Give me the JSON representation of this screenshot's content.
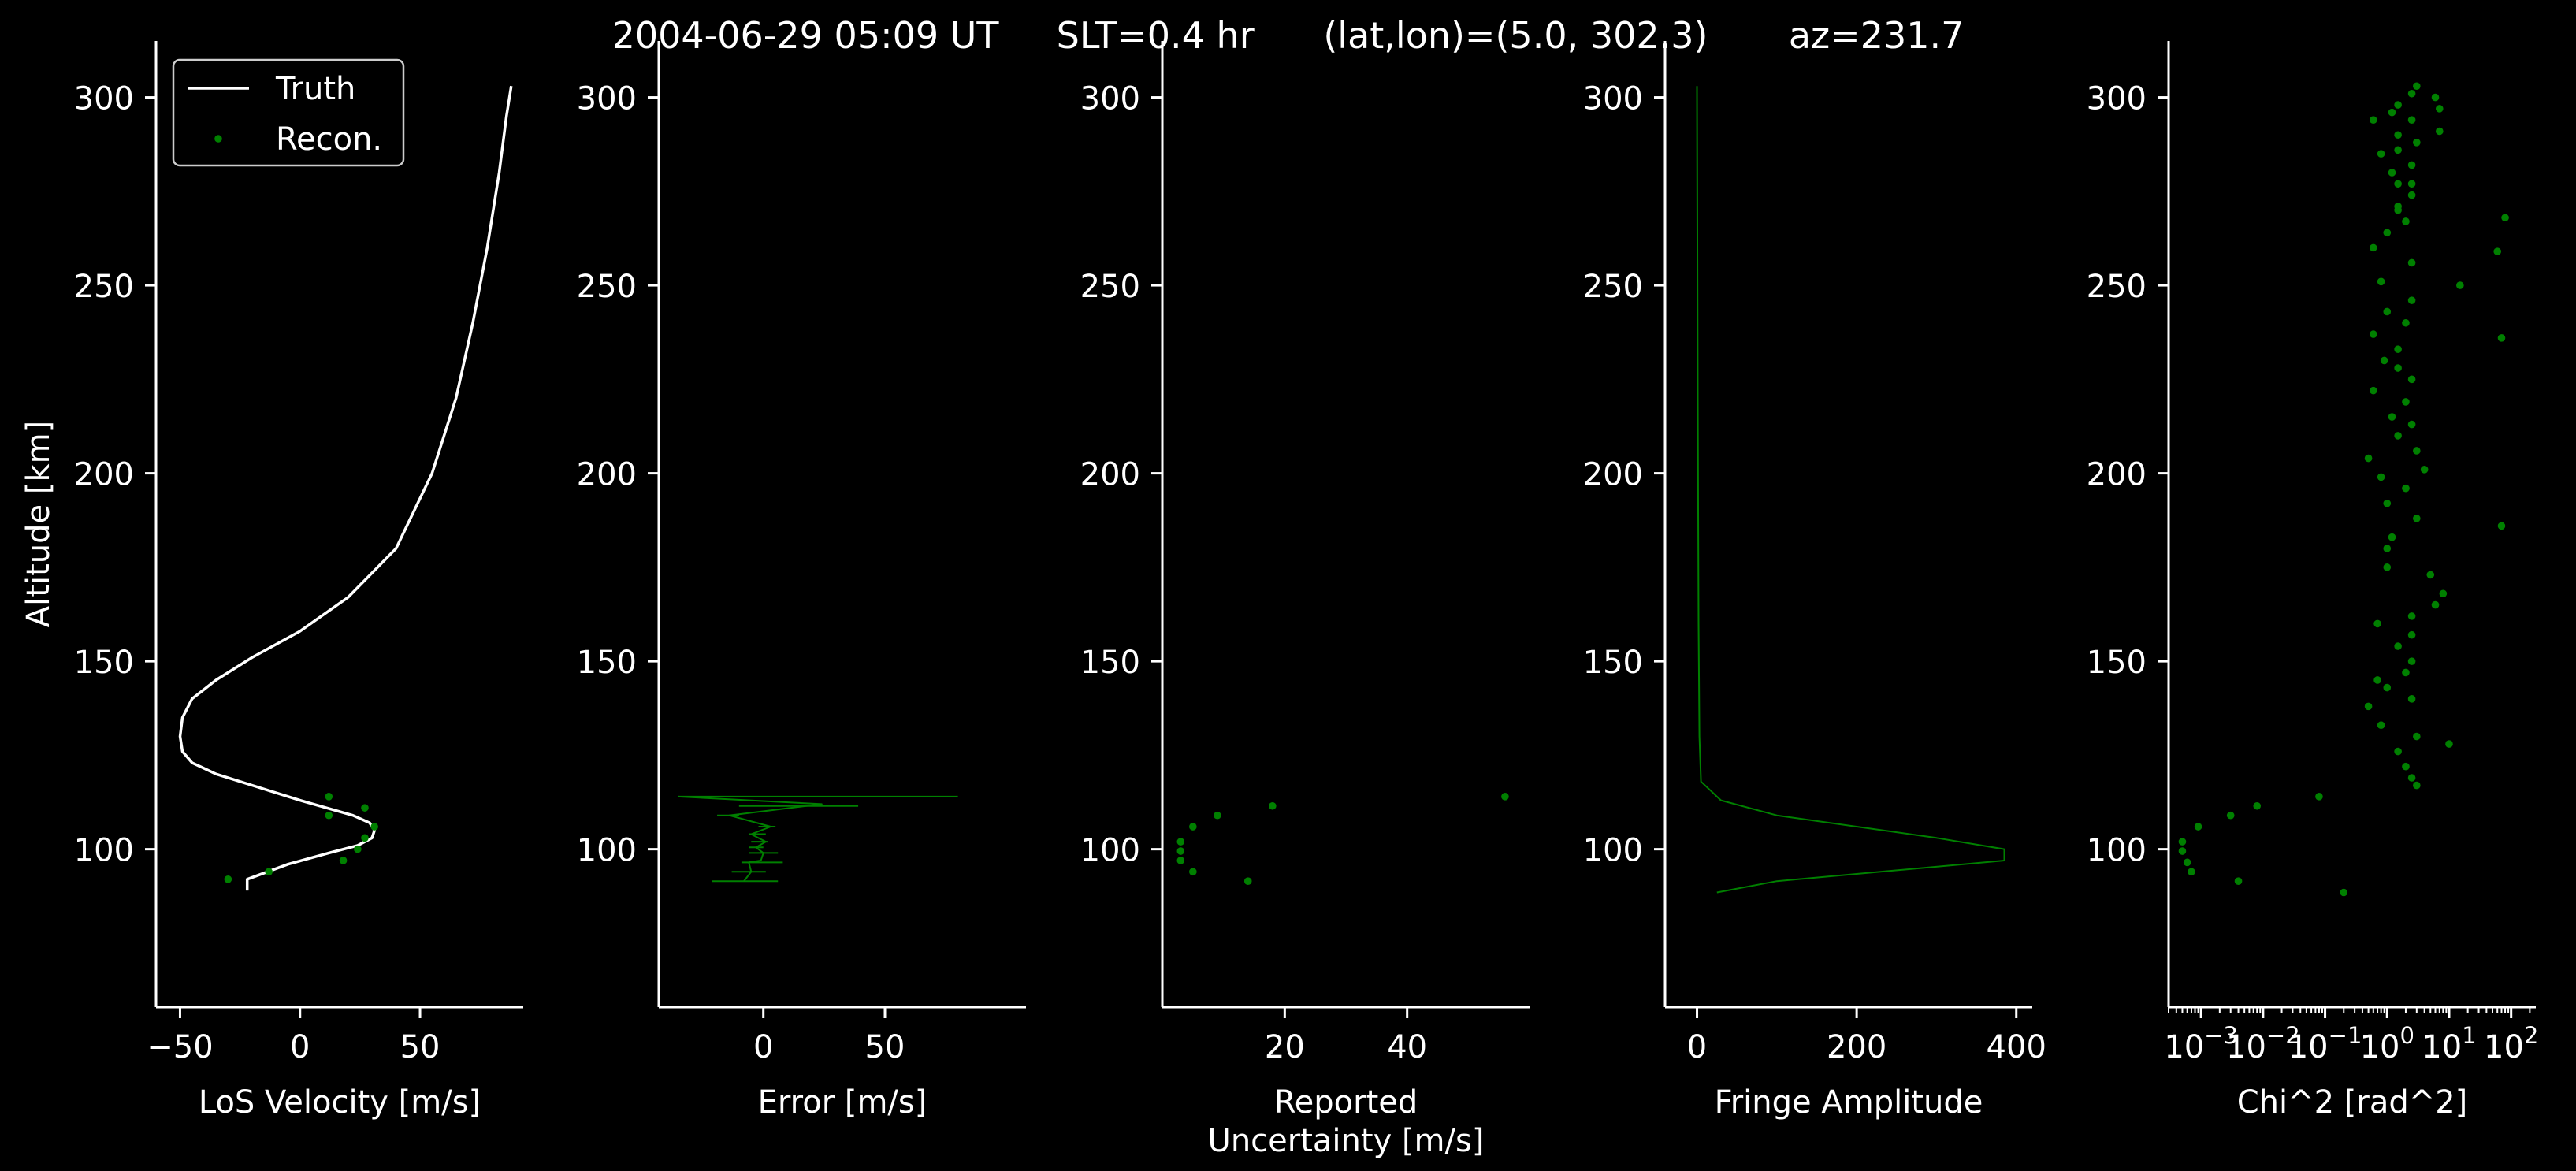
{
  "title": "2004-06-29 05:09 UT     SLT=0.4 hr      (lat,lon)=(5.0, 302.3)       az=231.7",
  "colors": {
    "background": "#000000",
    "axes": "#ffffff",
    "truth": "#ffffff",
    "recon": "#008000"
  },
  "chart_data": [
    {
      "type": "line",
      "xlabel": "LoS Velocity [m/s]",
      "ylabel": "Altitude [km]",
      "xlim": [
        -60,
        93
      ],
      "ylim": [
        58,
        315
      ],
      "xticks": [
        -50,
        0,
        50
      ],
      "xtick_labels": [
        "−50",
        "0",
        "50"
      ],
      "yticks": [
        100,
        150,
        200,
        250,
        300
      ],
      "legend": {
        "location": "upper left",
        "entries": [
          "Truth",
          "Recon."
        ]
      },
      "series": [
        {
          "name": "Truth",
          "style": "line",
          "color": "#ffffff",
          "x": [
            -22,
            -22,
            -5,
            12,
            24,
            30,
            31,
            29,
            22,
            0,
            -20,
            -35,
            -45,
            -49,
            -50,
            -49,
            -45,
            -35,
            -20,
            0,
            20,
            40,
            55,
            65,
            72,
            78,
            83,
            86,
            88
          ],
          "y": [
            89,
            92,
            96,
            99,
            101,
            103,
            105,
            107,
            109,
            113,
            117,
            120,
            123,
            126,
            130,
            135,
            140,
            145,
            151,
            158,
            167,
            180,
            200,
            220,
            240,
            260,
            280,
            295,
            303
          ]
        },
        {
          "name": "Recon.",
          "style": "scatter",
          "color": "#008000",
          "x": [
            -30,
            -13,
            18,
            24,
            27,
            31,
            12,
            12,
            27
          ],
          "y": [
            92,
            94,
            97,
            100,
            103,
            106,
            109,
            114,
            111
          ]
        }
      ]
    },
    {
      "type": "line",
      "xlabel": "Error [m/s]",
      "xlim": [
        -43,
        108
      ],
      "ylim": [
        58,
        315
      ],
      "xticks": [
        0,
        50
      ],
      "yticks": [
        100,
        150,
        200,
        250,
        300
      ],
      "series": [
        {
          "name": "",
          "style": "line",
          "color": "#008000",
          "x": [
            -8,
            -5,
            -6,
            -1,
            0,
            -3,
            1,
            -5,
            3,
            -14,
            24,
            -35
          ],
          "y": [
            91.5,
            94,
            96.5,
            97,
            99,
            100.5,
            102,
            104,
            106,
            109,
            112,
            114
          ]
        },
        {
          "name": "",
          "style": "errorbar",
          "color": "#008000",
          "y": [
            91.5,
            94,
            96.5,
            99,
            100.5,
            102,
            104,
            106,
            109,
            111.5,
            114
          ],
          "xmin": [
            -21,
            -13,
            -9,
            -6,
            -6,
            -5,
            -6,
            -2,
            -19,
            -10,
            -35
          ],
          "xmax": [
            6,
            1,
            8,
            6,
            0,
            2,
            1,
            5,
            -10,
            39,
            80
          ]
        }
      ]
    },
    {
      "type": "scatter",
      "xlabel": "Reported\nUncertainty [m/s]",
      "xlim": [
        0,
        60
      ],
      "ylim": [
        58,
        315
      ],
      "xticks": [
        20,
        40
      ],
      "yticks": [
        100,
        150,
        200,
        250,
        300
      ],
      "series": [
        {
          "name": "",
          "color": "#008000",
          "x": [
            14,
            5,
            3,
            3,
            3,
            5,
            9,
            18,
            56
          ],
          "y": [
            91.5,
            94,
            97,
            99.5,
            102,
            106,
            109,
            111.5,
            114
          ]
        }
      ]
    },
    {
      "type": "line",
      "xlabel": "Fringe Amplitude",
      "xlim": [
        -40,
        420
      ],
      "ylim": [
        58,
        315
      ],
      "xticks": [
        0,
        200,
        400
      ],
      "yticks": [
        100,
        150,
        200,
        250,
        300
      ],
      "series": [
        {
          "name": "",
          "color": "#008000",
          "x": [
            25,
            100,
            385,
            385,
            300,
            100,
            30,
            5,
            3,
            2,
            1,
            0
          ],
          "y": [
            88.5,
            91.5,
            97,
            100,
            103,
            109,
            113,
            118,
            130,
            160,
            220,
            303
          ]
        }
      ]
    },
    {
      "type": "scatter",
      "xlabel": "Chi^2 [rad^2]",
      "xscale": "log",
      "xlim": [
        0.0003,
        250
      ],
      "ylim": [
        58,
        315
      ],
      "xticks": [
        0.01,
        100
      ],
      "xtick_labels": [
        "10^-2",
        "10^2"
      ],
      "yticks": [
        100,
        150,
        200,
        250,
        300
      ],
      "series": [
        {
          "name": "",
          "color": "#008000",
          "x": [
            0.2,
            0.004,
            0.0007,
            0.0006,
            0.0005,
            0.0005,
            0.0009,
            0.003,
            0.008,
            0.08,
            3,
            10,
            2.5,
            3,
            2,
            1.5,
            0.8,
            0.5,
            2.5,
            2,
            1,
            0.7,
            2.5,
            1.5,
            6,
            8,
            2.5,
            0.7,
            1,
            1,
            5,
            2.5,
            1.2,
            3,
            4,
            2,
            1,
            0.5,
            3,
            1.5,
            0.8,
            2.5,
            1.2,
            2,
            0.6,
            70,
            2.5,
            1.5,
            0.9,
            1.5,
            0.6,
            2,
            1,
            2.5,
            0.8,
            2.5,
            0.6,
            1,
            2,
            1.5,
            2.5,
            1.5,
            1.2,
            2.5,
            0.8,
            3,
            1.5,
            2.5,
            1.2,
            1.5,
            2.5,
            7,
            0.6,
            1.5,
            7,
            2.5,
            1.5,
            3,
            6,
            15,
            70,
            60,
            80
          ],
          "y": [
            88.5,
            91.5,
            94,
            96.5,
            99.5,
            102,
            106,
            109,
            111.5,
            114,
            117,
            128,
            119,
            130,
            122,
            126,
            133,
            138,
            140,
            147,
            143,
            145,
            150,
            154,
            165,
            168,
            157,
            160,
            175,
            180,
            173,
            162,
            183,
            188,
            201,
            196,
            192,
            204,
            206,
            210,
            199,
            213,
            215,
            219,
            222,
            186,
            225,
            228,
            230,
            233,
            237,
            240,
            243,
            246,
            251,
            256,
            260,
            264,
            267,
            271,
            274,
            277,
            280,
            282,
            285,
            288,
            290,
            294,
            296,
            298,
            301,
            297,
            294,
            286,
            291,
            277,
            270,
            303,
            300,
            250,
            236,
            259,
            268
          ]
        }
      ]
    }
  ]
}
